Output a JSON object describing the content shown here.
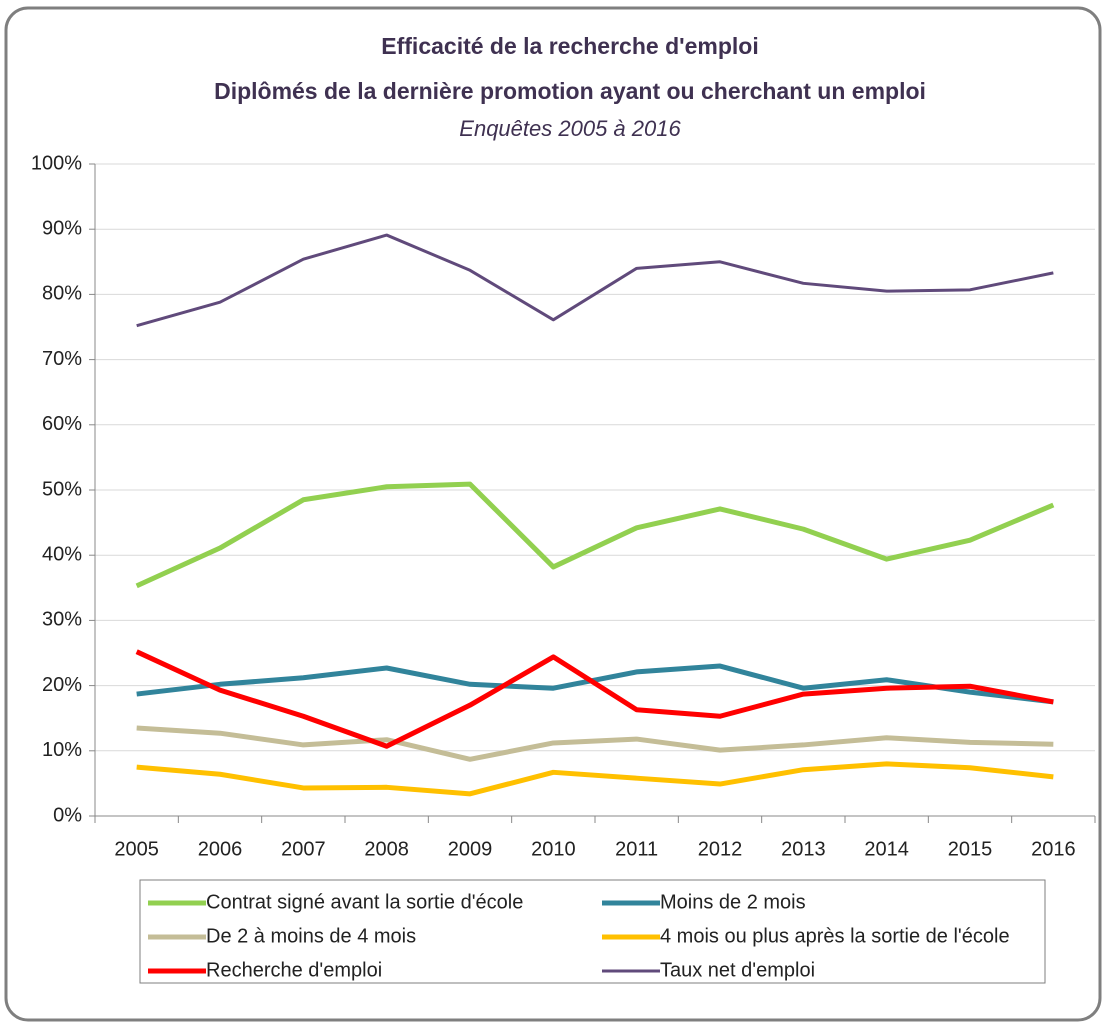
{
  "chart_data": {
    "type": "line",
    "title": [
      "Efficacité de la recherche d'emploi",
      "Diplômés de la dernière promotion ayant ou cherchant un emploi"
    ],
    "subtitle": "Enquêtes 2005 à 2016",
    "categories": [
      "2005",
      "2006",
      "2007",
      "2008",
      "2009",
      "2010",
      "2011",
      "2012",
      "2013",
      "2014",
      "2015",
      "2016"
    ],
    "series": [
      {
        "name": "Contrat signé avant la sortie d'école",
        "color": "#92d050",
        "values": [
          35.3,
          41.1,
          48.5,
          50.5,
          50.9,
          38.2,
          44.2,
          47.1,
          44,
          39.4,
          42.3,
          47.7
        ]
      },
      {
        "name": "Moins de 2 mois",
        "color": "#31849b",
        "values": [
          18.7,
          20.2,
          21.2,
          22.7,
          20.2,
          19.6,
          22.1,
          23,
          19.6,
          20.9,
          19,
          17.5
        ]
      },
      {
        "name": "De 2 à moins de 4 mois",
        "color": "#c4bd97",
        "values": [
          13.5,
          12.7,
          10.9,
          11.7,
          8.7,
          11.2,
          11.8,
          10.1,
          10.9,
          12,
          11.3,
          11
        ]
      },
      {
        "name": "4 mois ou plus après la sortie de l'école",
        "color": "#ffc000",
        "values": [
          7.5,
          6.4,
          4.3,
          4.4,
          3.4,
          6.7,
          5.8,
          4.9,
          7.1,
          8,
          7.4,
          6
        ]
      },
      {
        "name": "Recherche d'emploi",
        "color": "#ff0000",
        "values": [
          25.2,
          19.3,
          15.3,
          10.7,
          17,
          24.4,
          16.3,
          15.3,
          18.7,
          19.6,
          19.9,
          17.5
        ]
      },
      {
        "name": "Taux net d'emploi",
        "color": "#604a7b",
        "values": [
          75.2,
          78.8,
          85.4,
          89.1,
          83.7,
          76.1,
          84,
          85,
          81.7,
          80.5,
          80.7,
          83.3
        ]
      }
    ],
    "ylim": [
      0,
      100
    ],
    "yticks": [
      {
        "value": 0,
        "label": "0%"
      },
      {
        "value": 10,
        "label": "10%"
      },
      {
        "value": 20,
        "label": "20%"
      },
      {
        "value": 30,
        "label": "30%"
      },
      {
        "value": 40,
        "label": "40%"
      },
      {
        "value": 50,
        "label": "50%"
      },
      {
        "value": 60,
        "label": "60%"
      },
      {
        "value": 70,
        "label": "70%"
      },
      {
        "value": 80,
        "label": "80%"
      },
      {
        "value": 90,
        "label": "90%"
      },
      {
        "value": 100,
        "label": "100%"
      }
    ],
    "grid": true,
    "legend": "bottom"
  }
}
